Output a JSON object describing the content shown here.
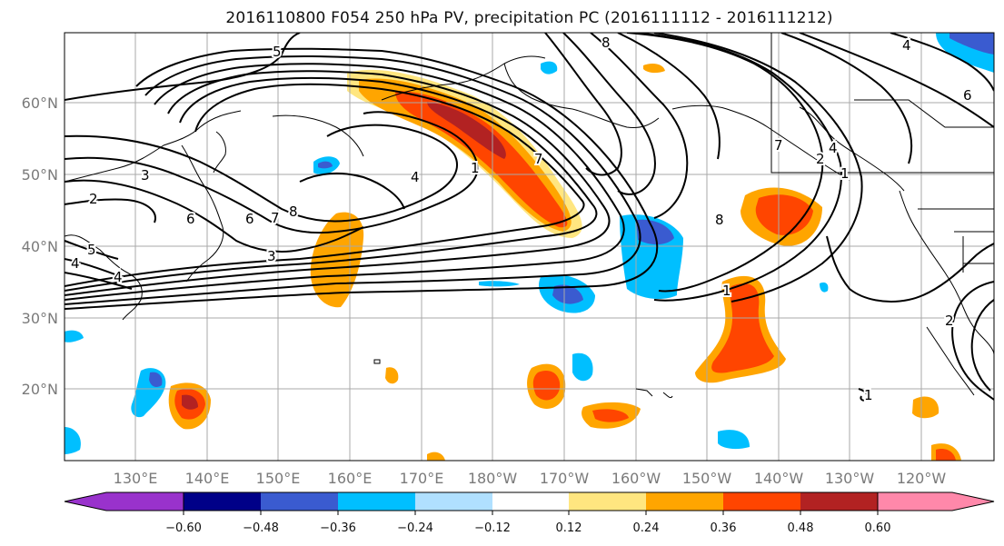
{
  "figure": {
    "title": "2016110800 F054 250 hPa PV, precipitation PC (2016111112 - 2016111212)",
    "lat_labels": [
      "20°N",
      "30°N",
      "40°N",
      "50°N",
      "60°N"
    ],
    "lon_labels": [
      "130°E",
      "140°E",
      "150°E",
      "160°E",
      "170°E",
      "180°W",
      "170°W",
      "160°W",
      "150°W",
      "140°W",
      "130°W",
      "120°W"
    ]
  },
  "contours": {
    "pv_labels": [
      "5",
      "8",
      "4",
      "6",
      "3",
      "2",
      "5",
      "4",
      "6",
      "7",
      "8",
      "3",
      "4",
      "1",
      "7",
      "2",
      "1",
      "8",
      "1",
      "7",
      "4",
      "1",
      "6",
      "4",
      "2"
    ]
  },
  "colorbar": {
    "tick_labels": [
      "−0.60",
      "−0.48",
      "−0.36",
      "−0.24",
      "−0.12",
      "0.12",
      "0.24",
      "0.36",
      "0.48",
      "0.60"
    ],
    "levels": [
      -0.6,
      -0.48,
      -0.36,
      -0.24,
      -0.12,
      0.12,
      0.24,
      0.36,
      0.48,
      0.6
    ],
    "under_color": "#9932cc",
    "over_color": "#ff88aa",
    "colors": [
      "#000088",
      "#3a5bd0",
      "#00bfff",
      "#b0e0ff",
      "#ffffff",
      "#ffe680",
      "#ffa500",
      "#ff4500",
      "#b22222"
    ]
  }
}
